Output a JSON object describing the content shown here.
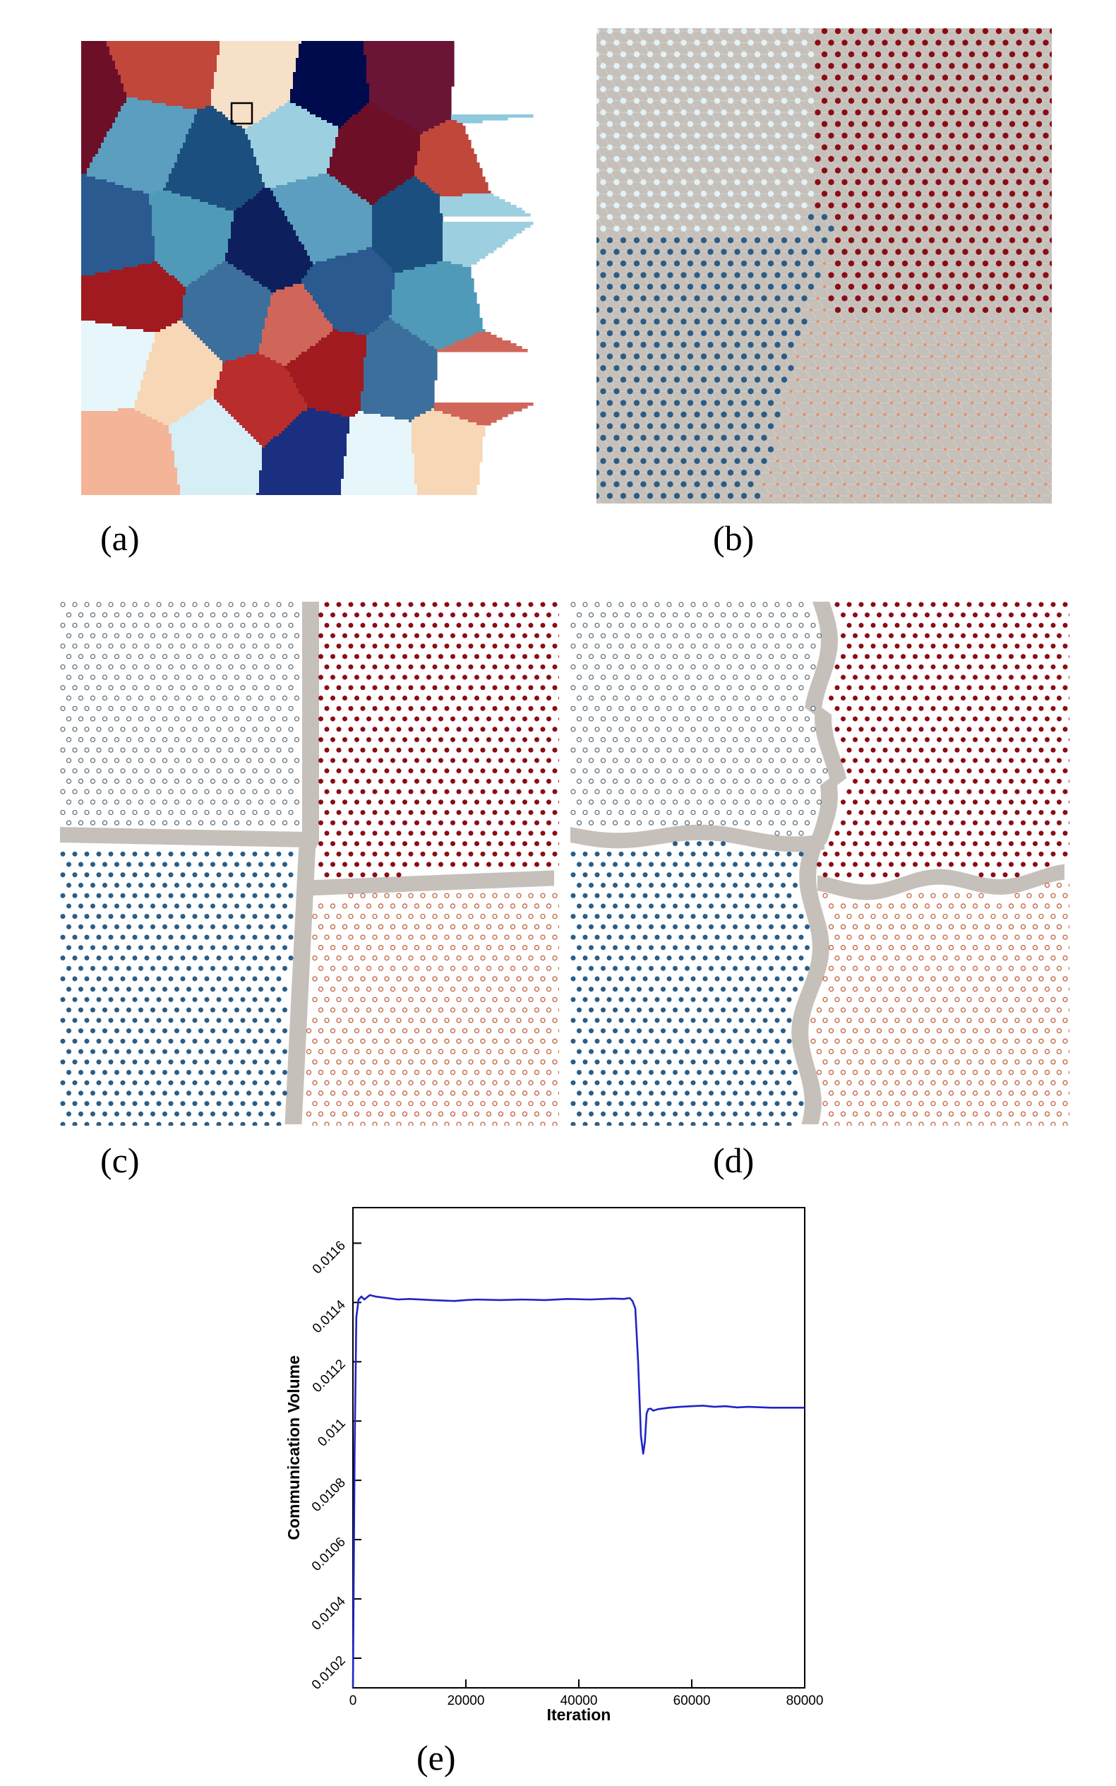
{
  "figure": {
    "panels": [
      {
        "id": "a",
        "caption": "(a)",
        "content": "voronoi-grain-partition"
      },
      {
        "id": "b",
        "caption": "(b)",
        "content": "particle-lattice-four-domains"
      },
      {
        "id": "c",
        "caption": "(c)",
        "content": "particle-partition-boundary-straight"
      },
      {
        "id": "d",
        "caption": "(d)",
        "content": "particle-partition-boundary-irregular"
      },
      {
        "id": "e",
        "caption": "(e)",
        "content": "communication-volume-line-chart"
      }
    ]
  },
  "colors": {
    "palette": [
      "#6e0f28",
      "#8fc9dd",
      "#d6eef5",
      "#a11a1f",
      "#0e1f5e",
      "#c0473a",
      "#e88a6a",
      "#1a2f80",
      "#3d6f9c",
      "#5b9ec0",
      "#f7e0c8",
      "#f3c2a1",
      "#e6f6fb",
      "#d0665a",
      "#1b4f80",
      "#000b4d",
      "#8a1126",
      "#f7d7b6",
      "#2a5a90",
      "#9ccfe0",
      "#6a1436",
      "#f4b497",
      "#b92d2d",
      "#4f9ab8"
    ],
    "lattice_background": "#c6c0bb",
    "domain_light": "#e2f3f8",
    "domain_darkred": "#8b0d14",
    "domain_blue": "#2b5d86",
    "domain_orange": "#e5906a",
    "chart_line": "#1f24c8"
  },
  "chart_data": {
    "type": "line",
    "title": "",
    "xlabel": "Iteration",
    "ylabel": "Communication Volume",
    "xlim": [
      0,
      80000
    ],
    "ylim": [
      0.0101,
      0.01172
    ],
    "xticks": [
      0,
      20000,
      40000,
      60000,
      80000
    ],
    "xtick_labels": [
      "0",
      "20000",
      "40000",
      "60000",
      "80000"
    ],
    "yticks": [
      0.0102,
      0.0104,
      0.0106,
      0.0108,
      0.011,
      0.0112,
      0.0114,
      0.0116
    ],
    "ytick_labels": [
      "0.0102",
      "0.0104",
      "0.0106",
      "0.0108",
      "0.011",
      "0.0112",
      "0.0114",
      "0.0116"
    ],
    "grid": false,
    "series": [
      {
        "x": [
          0,
          300,
          600,
          1000,
          1500,
          2000,
          3000,
          4000,
          6000,
          8000,
          10000,
          14000,
          18000,
          20000,
          22000,
          26000,
          30000,
          34000,
          38000,
          42000,
          46000,
          48000,
          49000,
          49500,
          50000,
          50500,
          51000,
          51400,
          51700,
          52000,
          52300,
          52700,
          53200,
          54000,
          56000,
          58000,
          60000,
          62000,
          64000,
          66000,
          68000,
          70000,
          74000,
          78000,
          80000
        ],
        "y": [
          0.0101,
          0.0109,
          0.01135,
          0.01141,
          0.01142,
          0.01141,
          0.011425,
          0.01142,
          0.011415,
          0.01141,
          0.011412,
          0.011408,
          0.011405,
          0.011408,
          0.01141,
          0.011408,
          0.01141,
          0.011408,
          0.011412,
          0.01141,
          0.011413,
          0.011412,
          0.011415,
          0.011405,
          0.01138,
          0.0112,
          0.01095,
          0.01089,
          0.01093,
          0.011025,
          0.01104,
          0.011042,
          0.011035,
          0.01104,
          0.011045,
          0.011048,
          0.01105,
          0.011052,
          0.011048,
          0.01105,
          0.011046,
          0.011048,
          0.011045,
          0.011045,
          0.011045
        ]
      }
    ]
  }
}
